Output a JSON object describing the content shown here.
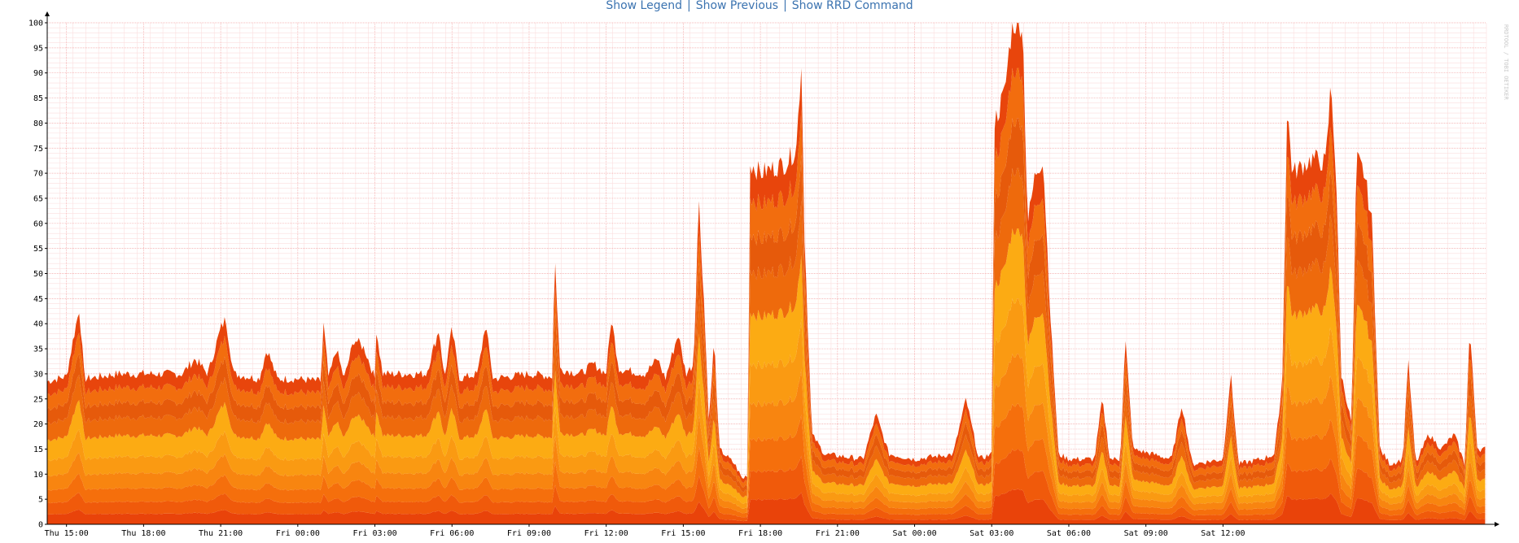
{
  "links": {
    "legend": "Show Legend",
    "previous": "Show Previous",
    "rrd": "Show RRD Command",
    "separator": "|"
  },
  "watermark": "RRDTOOL / TOBI OETIKER",
  "colors": {
    "grid_major": "#f2a0a0",
    "grid_minor": "#fbdede",
    "bands": [
      "#e9430a",
      "#f05a0b",
      "#f56f0c",
      "#f88510",
      "#fa9a12",
      "#fcab13",
      "#ee6a0c",
      "#e65a0b",
      "#f26d0e",
      "#e8450c"
    ]
  },
  "chart_data": {
    "type": "area",
    "stacked": true,
    "title": "",
    "xlabel": "",
    "ylabel": "",
    "ylim": [
      0,
      100
    ],
    "grid": true,
    "yticks": [
      0,
      5,
      10,
      15,
      20,
      25,
      30,
      35,
      40,
      45,
      50,
      55,
      60,
      65,
      70,
      75,
      80,
      85,
      90,
      95,
      100
    ],
    "xticks": [
      "Thu 15:00",
      "Thu 18:00",
      "Thu 21:00",
      "Fri 00:00",
      "Fri 03:00",
      "Fri 06:00",
      "Fri 09:00",
      "Fri 12:00",
      "Fri 15:00",
      "Fri 18:00",
      "Fri 21:00",
      "Sat 00:00",
      "Sat 03:00",
      "Sat 06:00",
      "Sat 09:00",
      "Sat 12:00"
    ],
    "x_hours": [
      -0.75,
      0,
      3,
      6,
      9,
      12,
      15,
      18,
      21,
      24,
      27,
      30,
      33,
      36,
      39,
      42,
      45,
      48
    ],
    "total": [
      29,
      29,
      29,
      29,
      29,
      29,
      29,
      29,
      29,
      29,
      29,
      29,
      29,
      29,
      29,
      29,
      29,
      29
    ],
    "total_profile": [
      [
        -0.75,
        28.5
      ],
      [
        0.0,
        29.5
      ],
      [
        0.3,
        38
      ],
      [
        0.5,
        43
      ],
      [
        0.7,
        29
      ],
      [
        2.0,
        30
      ],
      [
        4.5,
        30
      ],
      [
        5.0,
        33
      ],
      [
        5.5,
        30
      ],
      [
        6.0,
        39
      ],
      [
        6.2,
        41
      ],
      [
        6.5,
        30
      ],
      [
        7.5,
        29
      ],
      [
        7.8,
        35
      ],
      [
        8.2,
        29
      ],
      [
        9.0,
        29
      ],
      [
        9.9,
        28.5
      ],
      [
        10.0,
        40
      ],
      [
        10.2,
        29
      ],
      [
        10.5,
        35
      ],
      [
        10.8,
        29
      ],
      [
        11.2,
        37
      ],
      [
        11.6,
        35
      ],
      [
        12.0,
        29
      ],
      [
        12.0,
        41
      ],
      [
        12.3,
        30
      ],
      [
        14.0,
        30
      ],
      [
        14.5,
        39
      ],
      [
        14.7,
        29
      ],
      [
        15.0,
        39
      ],
      [
        15.3,
        29
      ],
      [
        16.0,
        30
      ],
      [
        16.3,
        40
      ],
      [
        16.6,
        29
      ],
      [
        18.0,
        30
      ],
      [
        18.9,
        29.5
      ],
      [
        19.0,
        54
      ],
      [
        19.2,
        31
      ],
      [
        20.0,
        30
      ],
      [
        20.5,
        32
      ],
      [
        21.0,
        30
      ],
      [
        21.2,
        41
      ],
      [
        21.5,
        31
      ],
      [
        22.5,
        30
      ],
      [
        23.0,
        33
      ],
      [
        23.3,
        29
      ],
      [
        23.8,
        38
      ],
      [
        24.1,
        30
      ],
      [
        24.4,
        32
      ],
      [
        24.6,
        65
      ],
      [
        24.8,
        45
      ],
      [
        25.0,
        20
      ],
      [
        25.2,
        37
      ],
      [
        25.4,
        15
      ],
      [
        26.0,
        12
      ],
      [
        26.3,
        9
      ],
      [
        26.5,
        10
      ],
      [
        26.6,
        72
      ],
      [
        27.0,
        70
      ],
      [
        28.0,
        72
      ],
      [
        28.4,
        75
      ],
      [
        28.6,
        93
      ],
      [
        28.7,
        60
      ],
      [
        29.0,
        18
      ],
      [
        29.5,
        14
      ],
      [
        31.0,
        13
      ],
      [
        31.5,
        22
      ],
      [
        32.0,
        14
      ],
      [
        33.0,
        13
      ],
      [
        34.5,
        14
      ],
      [
        35.0,
        25
      ],
      [
        35.5,
        13
      ],
      [
        36.0,
        14
      ],
      [
        36.1,
        80
      ],
      [
        36.5,
        86
      ],
      [
        36.8,
        100
      ],
      [
        37.2,
        100
      ],
      [
        37.4,
        60
      ],
      [
        37.7,
        70
      ],
      [
        38.0,
        73
      ],
      [
        38.3,
        40
      ],
      [
        38.6,
        14
      ],
      [
        39.0,
        13
      ],
      [
        40.0,
        13
      ],
      [
        40.3,
        25
      ],
      [
        40.6,
        13
      ],
      [
        41.0,
        13
      ],
      [
        41.2,
        37
      ],
      [
        41.5,
        15
      ],
      [
        43.0,
        13
      ],
      [
        43.4,
        24
      ],
      [
        43.8,
        12
      ],
      [
        45.0,
        13
      ],
      [
        45.3,
        30
      ],
      [
        45.6,
        12
      ],
      [
        46.5,
        13
      ],
      [
        47.0,
        14
      ],
      [
        47.3,
        28
      ],
      [
        47.5,
        83
      ],
      [
        47.7,
        70
      ],
      [
        48.5,
        73
      ],
      [
        49.0,
        72
      ],
      [
        49.2,
        88
      ],
      [
        49.4,
        70
      ],
      [
        49.6,
        30
      ],
      [
        50.0,
        20
      ],
      [
        50.2,
        73
      ],
      [
        50.5,
        70
      ],
      [
        50.8,
        60
      ],
      [
        51.1,
        15
      ],
      [
        51.5,
        12
      ],
      [
        52.0,
        13
      ],
      [
        52.2,
        33
      ],
      [
        52.5,
        12
      ],
      [
        53.0,
        18
      ],
      [
        53.5,
        15
      ],
      [
        54.0,
        18
      ],
      [
        54.4,
        12
      ],
      [
        54.6,
        39
      ],
      [
        54.9,
        15
      ]
    ],
    "bands": 10
  }
}
